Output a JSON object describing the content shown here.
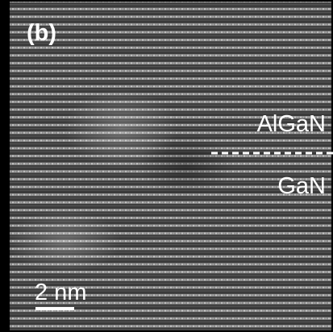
{
  "panel_label": "(b)",
  "layers": {
    "top": "AlGaN",
    "bottom": "GaN"
  },
  "scale_bar": "2 nm"
}
